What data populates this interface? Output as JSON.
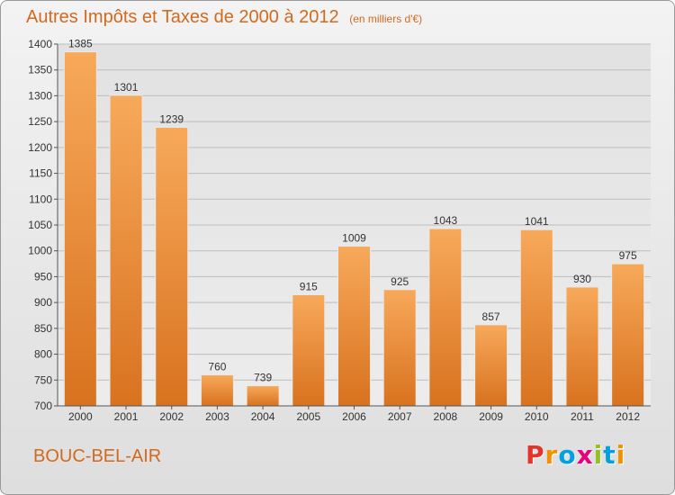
{
  "title": "Autres Impôts et Taxes de 2000 à 2012",
  "unit": "(en milliers d'€)",
  "commune": "BOUC-BEL-AIR",
  "logo": {
    "letters": [
      "P",
      "r",
      "o",
      "x",
      "i",
      "t",
      "i"
    ],
    "colors": [
      "#e6332a",
      "#f39200",
      "#00a0e3",
      "#e6007e",
      "#95c11f",
      "#00a0e3",
      "#f39200"
    ]
  },
  "colors": {
    "accent": "#d2691e",
    "bar_top": "#f7a95a",
    "bar_bottom": "#d8721f"
  },
  "chart_data": {
    "type": "bar",
    "categories": [
      "2000",
      "2001",
      "2002",
      "2003",
      "2004",
      "2005",
      "2006",
      "2007",
      "2008",
      "2009",
      "2010",
      "2011",
      "2012"
    ],
    "values": [
      1385,
      1301,
      1239,
      760,
      739,
      915,
      1009,
      925,
      1043,
      857,
      1041,
      930,
      975
    ],
    "yticks": [
      700,
      750,
      800,
      850,
      900,
      950,
      1000,
      1050,
      1100,
      1150,
      1200,
      1250,
      1300,
      1350,
      1400
    ],
    "ylim": [
      700,
      1400
    ],
    "grid": true
  }
}
